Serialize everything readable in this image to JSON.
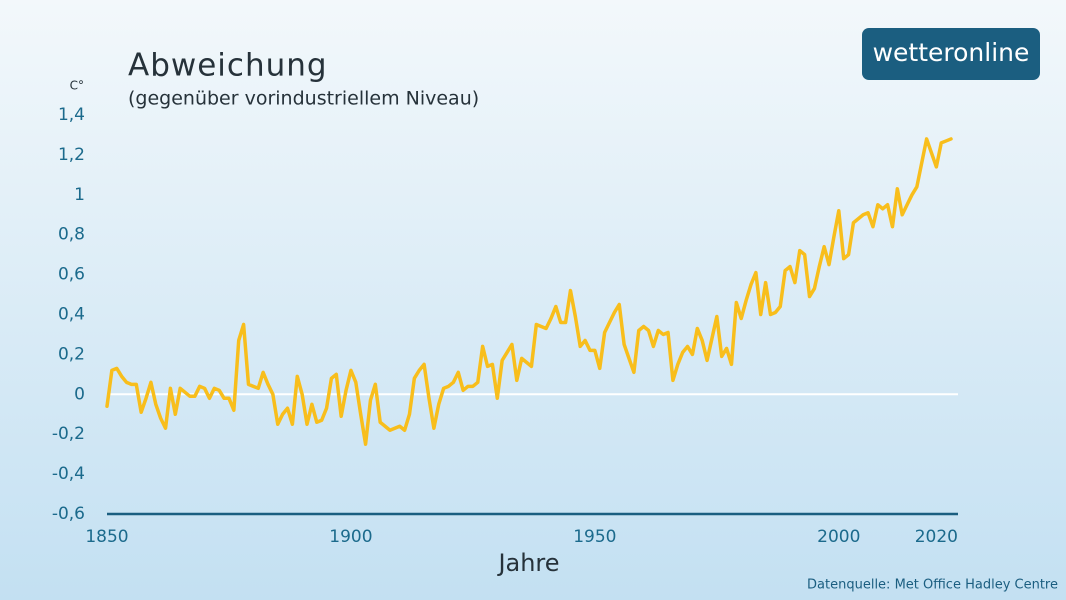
{
  "brand": "wetteronline",
  "source": "Datenquelle: Met Office Hadley Centre",
  "chart_data": {
    "type": "line",
    "title": "Abweichung",
    "subtitle": "(gegenüber vorindustriellem Niveau)",
    "y_unit": "C°",
    "x_label": "Jahre",
    "color": "#f8be1c",
    "zero_line_color": "#ffffff",
    "x": [
      1850,
      1851,
      1852,
      1853,
      1854,
      1855,
      1856,
      1857,
      1858,
      1859,
      1860,
      1861,
      1862,
      1863,
      1864,
      1865,
      1866,
      1867,
      1868,
      1869,
      1870,
      1871,
      1872,
      1873,
      1874,
      1875,
      1876,
      1877,
      1878,
      1879,
      1880,
      1881,
      1882,
      1883,
      1884,
      1885,
      1886,
      1887,
      1888,
      1889,
      1890,
      1891,
      1892,
      1893,
      1894,
      1895,
      1896,
      1897,
      1898,
      1899,
      1900,
      1901,
      1902,
      1903,
      1904,
      1905,
      1906,
      1907,
      1908,
      1909,
      1910,
      1911,
      1912,
      1913,
      1914,
      1915,
      1916,
      1917,
      1918,
      1919,
      1920,
      1921,
      1922,
      1923,
      1924,
      1925,
      1926,
      1927,
      1928,
      1929,
      1930,
      1931,
      1932,
      1933,
      1934,
      1935,
      1936,
      1937,
      1938,
      1939,
      1940,
      1941,
      1942,
      1943,
      1944,
      1945,
      1946,
      1947,
      1948,
      1949,
      1950,
      1951,
      1952,
      1953,
      1954,
      1955,
      1956,
      1957,
      1958,
      1959,
      1960,
      1961,
      1962,
      1963,
      1964,
      1965,
      1966,
      1967,
      1968,
      1969,
      1970,
      1971,
      1972,
      1973,
      1974,
      1975,
      1976,
      1977,
      1978,
      1979,
      1980,
      1981,
      1982,
      1983,
      1984,
      1985,
      1986,
      1987,
      1988,
      1989,
      1990,
      1991,
      1992,
      1993,
      1994,
      1995,
      1996,
      1997,
      1998,
      1999,
      2000,
      2001,
      2002,
      2003,
      2004,
      2005,
      2006,
      2007,
      2008,
      2009,
      2010,
      2011,
      2012,
      2013,
      2014,
      2015,
      2016,
      2017,
      2018,
      2019,
      2020,
      2021,
      2022,
      2023
    ],
    "values": [
      -0.06,
      0.12,
      0.13,
      0.09,
      0.06,
      0.05,
      0.05,
      -0.09,
      -0.02,
      0.06,
      -0.05,
      -0.12,
      -0.17,
      0.03,
      -0.1,
      0.03,
      0.01,
      -0.01,
      -0.01,
      0.04,
      0.03,
      -0.02,
      0.03,
      0.02,
      -0.02,
      -0.02,
      -0.08,
      0.27,
      0.35,
      0.05,
      0.04,
      0.03,
      0.11,
      0.05,
      0.0,
      -0.15,
      -0.1,
      -0.07,
      -0.15,
      0.09,
      0.0,
      -0.15,
      -0.05,
      -0.14,
      -0.13,
      -0.07,
      0.08,
      0.1,
      -0.11,
      0.02,
      0.12,
      0.06,
      -0.1,
      -0.25,
      -0.03,
      0.05,
      -0.14,
      -0.16,
      -0.18,
      -0.17,
      -0.16,
      -0.18,
      -0.1,
      0.08,
      0.12,
      0.15,
      -0.02,
      -0.17,
      -0.05,
      0.03,
      0.04,
      0.06,
      0.11,
      0.02,
      0.04,
      0.04,
      0.06,
      0.24,
      0.14,
      0.15,
      -0.02,
      0.17,
      0.21,
      0.25,
      0.07,
      0.18,
      0.16,
      0.14,
      0.35,
      0.34,
      0.33,
      0.38,
      0.44,
      0.36,
      0.36,
      0.52,
      0.39,
      0.24,
      0.27,
      0.22,
      0.22,
      0.13,
      0.31,
      0.36,
      0.41,
      0.45,
      0.25,
      0.18,
      0.11,
      0.32,
      0.34,
      0.32,
      0.24,
      0.32,
      0.3,
      0.31,
      0.07,
      0.15,
      0.21,
      0.24,
      0.2,
      0.33,
      0.27,
      0.17,
      0.28,
      0.39,
      0.19,
      0.23,
      0.15,
      0.46,
      0.38,
      0.47,
      0.55,
      0.61,
      0.4,
      0.56,
      0.4,
      0.41,
      0.44,
      0.62,
      0.64,
      0.56,
      0.72,
      0.7,
      0.49,
      0.53,
      0.64,
      0.74,
      0.65,
      0.79,
      0.92,
      0.68,
      0.7,
      0.86,
      0.88,
      0.9,
      0.91,
      0.84,
      0.95,
      0.93,
      0.95,
      0.84,
      1.03,
      0.9,
      0.95,
      1.0,
      1.04,
      1.16,
      1.28,
      1.21,
      1.14,
      1.26,
      1.27,
      1.28
    ],
    "xlim": [
      1850,
      2023
    ],
    "xticks": [
      1850,
      1900,
      1950,
      2000,
      2020
    ],
    "ylim": [
      -0.6,
      1.4
    ],
    "yticks": [
      {
        "value": -0.6,
        "label": "-0,6"
      },
      {
        "value": -0.4,
        "label": "-0,4"
      },
      {
        "value": -0.2,
        "label": "-0,2"
      },
      0,
      {
        "value": 0.2,
        "label": "0,2"
      },
      {
        "value": 0.4,
        "label": "0,4"
      },
      {
        "value": 0.6,
        "label": "0,6"
      },
      {
        "value": 0.8,
        "label": "0,8"
      },
      1,
      {
        "value": 1.2,
        "label": "1,2"
      },
      {
        "value": 1.4,
        "label": "1,4"
      }
    ]
  }
}
